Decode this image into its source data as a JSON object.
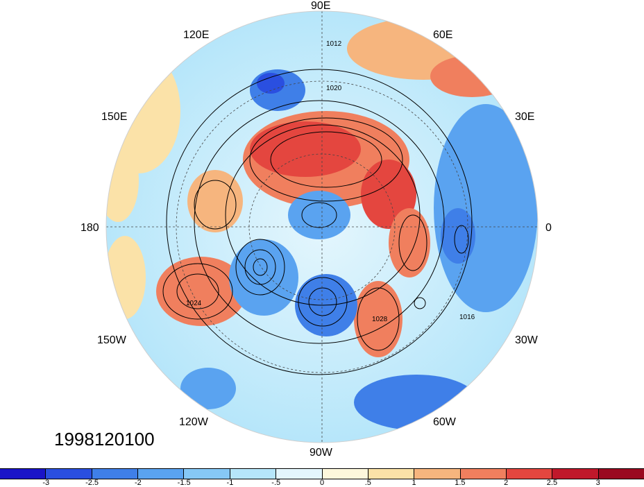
{
  "date_stamp": "1998120100",
  "longitude_labels": [
    "90E",
    "60E",
    "30E",
    "0",
    "30W",
    "60W",
    "90W",
    "120W",
    "150W",
    "180",
    "150E",
    "120E"
  ],
  "contour_labels": [
    "1012",
    "1016",
    "1020",
    "1024",
    "1028"
  ],
  "colorbar": {
    "ticks": [
      "-3",
      "-2.5",
      "-2",
      "-1.5",
      "-1",
      "-.5",
      "0",
      ".5",
      "1",
      "1.5",
      "2",
      "2.5",
      "3"
    ],
    "colors": [
      "#1a14c8",
      "#2a4fe0",
      "#3f7fe8",
      "#5aa3f0",
      "#86c8f6",
      "#b6e6fa",
      "#e4f6fd",
      "#fdf7dc",
      "#fbe2a8",
      "#f6b57e",
      "#f07f5e",
      "#e4463f",
      "#c0182b",
      "#9a0a20"
    ]
  }
}
